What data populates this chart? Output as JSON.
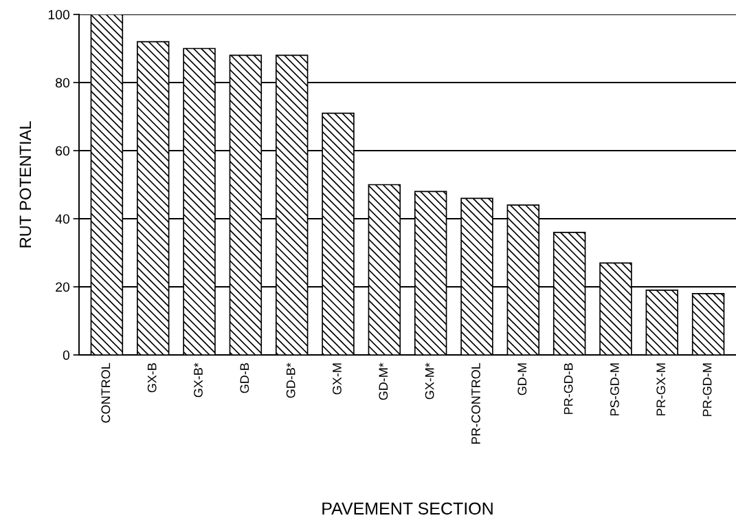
{
  "chart_data": {
    "type": "bar",
    "xlabel": "PAVEMENT SECTION",
    "ylabel": "RUT POTENTIAL",
    "categories": [
      "CONTROL",
      "GX-B",
      "GX-B*",
      "GD-B",
      "GD-B*",
      "GX-M",
      "GD-M*",
      "GX-M*",
      "PR-CONTROL",
      "GD-M",
      "PR-GD-B",
      "PS-GD-M",
      "PR-GX-M",
      "PR-GD-M"
    ],
    "values": [
      100,
      92,
      90,
      88,
      88,
      71,
      50,
      48,
      46,
      44,
      36,
      27,
      19,
      18
    ],
    "color": "#000000",
    "ylim": [
      0,
      100
    ],
    "yticks": [
      0,
      20,
      40,
      60,
      80,
      100
    ],
    "grid": "y"
  }
}
